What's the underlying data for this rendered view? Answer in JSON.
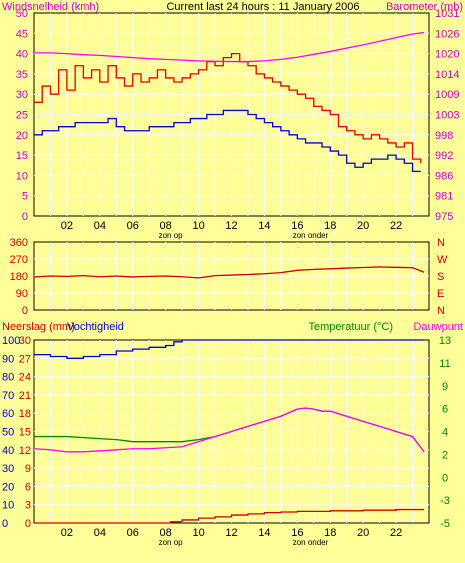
{
  "header": {
    "left_label": "Windsnelheid (kmh)",
    "center_label": "Current last 24 hours : 11 January 2006",
    "right_label": "Barometer (mb)"
  },
  "colors": {
    "background": "#ffff99",
    "grid": "#ffffff",
    "wind_axis": "#cc00cc",
    "baro_axis": "#cc00cc",
    "gust": "#dd0000",
    "wind": "#0000cc",
    "pressure": "#ff00ff",
    "direction": "#cc0000",
    "humidity": "#0000cc",
    "temperature": "#008800",
    "dewpoint": "#ff00ff",
    "rain": "#cc0000",
    "temp_axis": "#008800"
  },
  "x_ticks": [
    "02",
    "04",
    "06",
    "08",
    "10",
    "12",
    "14",
    "16",
    "18",
    "20",
    "22"
  ],
  "sun_labels": {
    "sunrise": "zon op",
    "sunset": "zon onder"
  },
  "chart_data": [
    {
      "type": "line",
      "id": "wind-pressure",
      "title": "Current last 24 hours : 11 January 2006",
      "ylabel": "Windsnelheid (kmh)",
      "y2label": "Barometer (mb)",
      "xlim": [
        0,
        24
      ],
      "ylim": [
        0,
        50
      ],
      "y_ticks": [
        0,
        5,
        10,
        15,
        20,
        25,
        30,
        35,
        40,
        45,
        50
      ],
      "y2lim": [
        975,
        1031
      ],
      "y2_ticks": [
        975,
        981,
        986,
        992,
        998,
        1003,
        1009,
        1014,
        1020,
        1026,
        1031
      ],
      "grid": true,
      "series": [
        {
          "name": "gust",
          "axis": "left",
          "x": [
            0,
            0.5,
            1,
            1.5,
            2,
            2.5,
            3,
            3.5,
            4,
            4.5,
            5,
            5.5,
            6,
            6.5,
            7,
            7.5,
            8,
            8.5,
            9,
            9.5,
            10,
            10.5,
            11,
            11.5,
            12,
            12.5,
            13,
            13.5,
            14,
            14.5,
            15,
            15.5,
            16,
            16.5,
            17,
            17.5,
            18,
            18.5,
            19,
            19.5,
            20,
            20.5,
            21,
            21.5,
            22,
            22.5,
            23,
            23.5
          ],
          "values": [
            28,
            32,
            30,
            36,
            31,
            37,
            34,
            36,
            33,
            37,
            34,
            32,
            35,
            33,
            34,
            36,
            34,
            33,
            34,
            35,
            36,
            38,
            37,
            39,
            40,
            38,
            37,
            35,
            34,
            33,
            32,
            31,
            30,
            29,
            27,
            26,
            25,
            22,
            21,
            20,
            19,
            20,
            19,
            18,
            17,
            18,
            14,
            13
          ]
        },
        {
          "name": "wind",
          "axis": "left",
          "x": [
            0,
            0.5,
            1,
            1.5,
            2,
            2.5,
            3,
            3.5,
            4,
            4.5,
            5,
            5.5,
            6,
            6.5,
            7,
            7.5,
            8,
            8.5,
            9,
            9.5,
            10,
            10.5,
            11,
            11.5,
            12,
            12.5,
            13,
            13.5,
            14,
            14.5,
            15,
            15.5,
            16,
            16.5,
            17,
            17.5,
            18,
            18.5,
            19,
            19.5,
            20,
            20.5,
            21,
            21.5,
            22,
            22.5,
            23,
            23.5
          ],
          "values": [
            20,
            21,
            21,
            22,
            22,
            23,
            23,
            23,
            23,
            24,
            22,
            21,
            21,
            21,
            22,
            22,
            22,
            23,
            23,
            24,
            24,
            25,
            25,
            26,
            26,
            26,
            25,
            24,
            23,
            22,
            21,
            20,
            19,
            18,
            18,
            17,
            16,
            15,
            13,
            12,
            13,
            14,
            14,
            15,
            14,
            13,
            11,
            11
          ]
        },
        {
          "name": "pressure",
          "axis": "right",
          "x": [
            0,
            1,
            2,
            3,
            4,
            5,
            6,
            7,
            8,
            9,
            10,
            11,
            12,
            13,
            14,
            15,
            16,
            17,
            18,
            19,
            20,
            21,
            22,
            23,
            23.7
          ],
          "values": [
            1020,
            1020,
            1019.8,
            1019.5,
            1019.3,
            1019,
            1018.7,
            1018.4,
            1018.2,
            1018,
            1017.8,
            1017.7,
            1017.6,
            1017.6,
            1017.8,
            1018.2,
            1018.8,
            1019.6,
            1020.4,
            1021.3,
            1022.2,
            1023.2,
            1024.2,
            1025.2,
            1025.6
          ]
        }
      ]
    },
    {
      "type": "line",
      "id": "wind-direction",
      "xlim": [
        0,
        24
      ],
      "ylim": [
        0,
        360
      ],
      "y_ticks": [
        0,
        90,
        180,
        270,
        360
      ],
      "y2_labels": [
        "N",
        "W",
        "S",
        "E",
        "N"
      ],
      "grid": true,
      "series": [
        {
          "name": "direction",
          "x": [
            0,
            1,
            2,
            3,
            4,
            5,
            6,
            7,
            8,
            9,
            10,
            11,
            12,
            13,
            14,
            15,
            16,
            17,
            18,
            19,
            20,
            21,
            22,
            23,
            23.7
          ],
          "values": [
            175,
            180,
            178,
            182,
            176,
            180,
            175,
            178,
            180,
            176,
            170,
            182,
            185,
            188,
            192,
            198,
            210,
            215,
            218,
            222,
            225,
            228,
            226,
            224,
            200
          ]
        }
      ]
    },
    {
      "type": "line",
      "id": "rain-humidity-temperature",
      "xlim": [
        0,
        24
      ],
      "ylabel": "Neerslag (mm)",
      "ylabel_right": "Vochtigheid",
      "y2label": "Temperatuur (°C)",
      "y2label_right": "Dauwpunt",
      "humidity_ticks": [
        0,
        10,
        20,
        30,
        40,
        50,
        60,
        70,
        80,
        90,
        100
      ],
      "rain_ticks": [
        0,
        3,
        6,
        9,
        12,
        15,
        18,
        21,
        24,
        27,
        30
      ],
      "ylim": [
        0,
        100
      ],
      "y2lim": [
        -5,
        13
      ],
      "y2_ticks": [
        -5,
        -3,
        0,
        2,
        4,
        6,
        9,
        11,
        13
      ],
      "grid": true,
      "series": [
        {
          "name": "humidity",
          "x": [
            0,
            1,
            2,
            3,
            4,
            5,
            6,
            7,
            8,
            8.5,
            9,
            10,
            12,
            14,
            16,
            18,
            20,
            22,
            23.7
          ],
          "values": [
            92,
            91,
            90,
            91,
            92,
            94,
            95,
            96,
            97,
            99,
            100,
            100,
            100,
            100,
            100,
            100,
            100,
            100,
            100
          ]
        },
        {
          "name": "temperature",
          "axis": "right",
          "x": [
            0,
            1,
            2,
            3,
            4,
            5,
            6,
            7,
            8,
            9,
            10,
            11,
            12,
            13,
            14,
            15,
            16,
            16.5,
            17,
            17.5,
            18,
            19,
            20,
            21,
            22,
            23,
            23.7
          ],
          "values": [
            3.5,
            3.5,
            3.5,
            3.4,
            3.3,
            3.2,
            3.0,
            3.0,
            3.0,
            3.0,
            3.2,
            3.5,
            4.0,
            4.5,
            5.0,
            5.5,
            6.2,
            6.3,
            6.2,
            6.0,
            6.0,
            5.5,
            5.0,
            4.5,
            4.0,
            3.5,
            2.0
          ]
        },
        {
          "name": "dewpoint",
          "axis": "right",
          "x": [
            0,
            1,
            2,
            3,
            4,
            5,
            6,
            7,
            8,
            9,
            10,
            11,
            12,
            13,
            14,
            15,
            16,
            16.5,
            17,
            17.5,
            18,
            19,
            20,
            21,
            22,
            23,
            23.7
          ],
          "values": [
            2.3,
            2.2,
            2.0,
            2.0,
            2.1,
            2.2,
            2.3,
            2.3,
            2.4,
            2.5,
            3.0,
            3.5,
            4.0,
            4.5,
            5.0,
            5.5,
            6.2,
            6.3,
            6.2,
            6.0,
            6.0,
            5.5,
            5.0,
            4.5,
            4.0,
            3.5,
            2.0
          ]
        },
        {
          "name": "rain",
          "x": [
            0,
            2,
            4,
            6,
            8,
            8.3,
            9,
            10,
            11,
            12,
            13,
            14,
            15,
            16,
            17,
            18,
            19,
            20,
            21,
            22,
            23,
            23.7
          ],
          "values": [
            0,
            0,
            0,
            0,
            0,
            0.2,
            0.5,
            0.8,
            1.0,
            1.3,
            1.5,
            1.7,
            1.8,
            1.9,
            1.9,
            2.0,
            2.0,
            2.1,
            2.1,
            2.2,
            2.2,
            2.2
          ]
        }
      ]
    }
  ]
}
